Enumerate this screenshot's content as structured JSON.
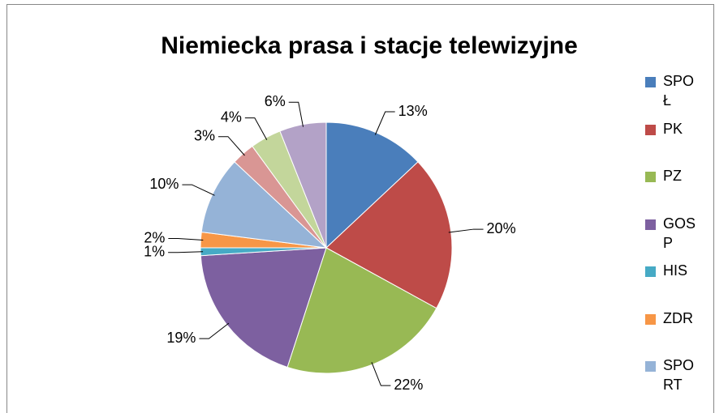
{
  "chart_data": {
    "type": "pie",
    "title": "Niemiecka prasa i stacje telewizyjne",
    "categories": [
      "SPOŁ",
      "PK",
      "PZ",
      "GOSP",
      "HIS",
      "ZDR",
      "SPORT",
      null,
      null,
      null
    ],
    "values": [
      13,
      20,
      22,
      19,
      1,
      2,
      10,
      3,
      4,
      6
    ],
    "value_labels": [
      "13%",
      "20%",
      "22%",
      "19%",
      "1%",
      "2%",
      "10%",
      "3%",
      "4%",
      "6%"
    ],
    "colors": [
      "#4a7ebb",
      "#be4b48",
      "#98b954",
      "#7d60a0",
      "#46aac5",
      "#f79646",
      "#95b3d7",
      "#d99694",
      "#c3d69b",
      "#b3a2c7"
    ]
  }
}
